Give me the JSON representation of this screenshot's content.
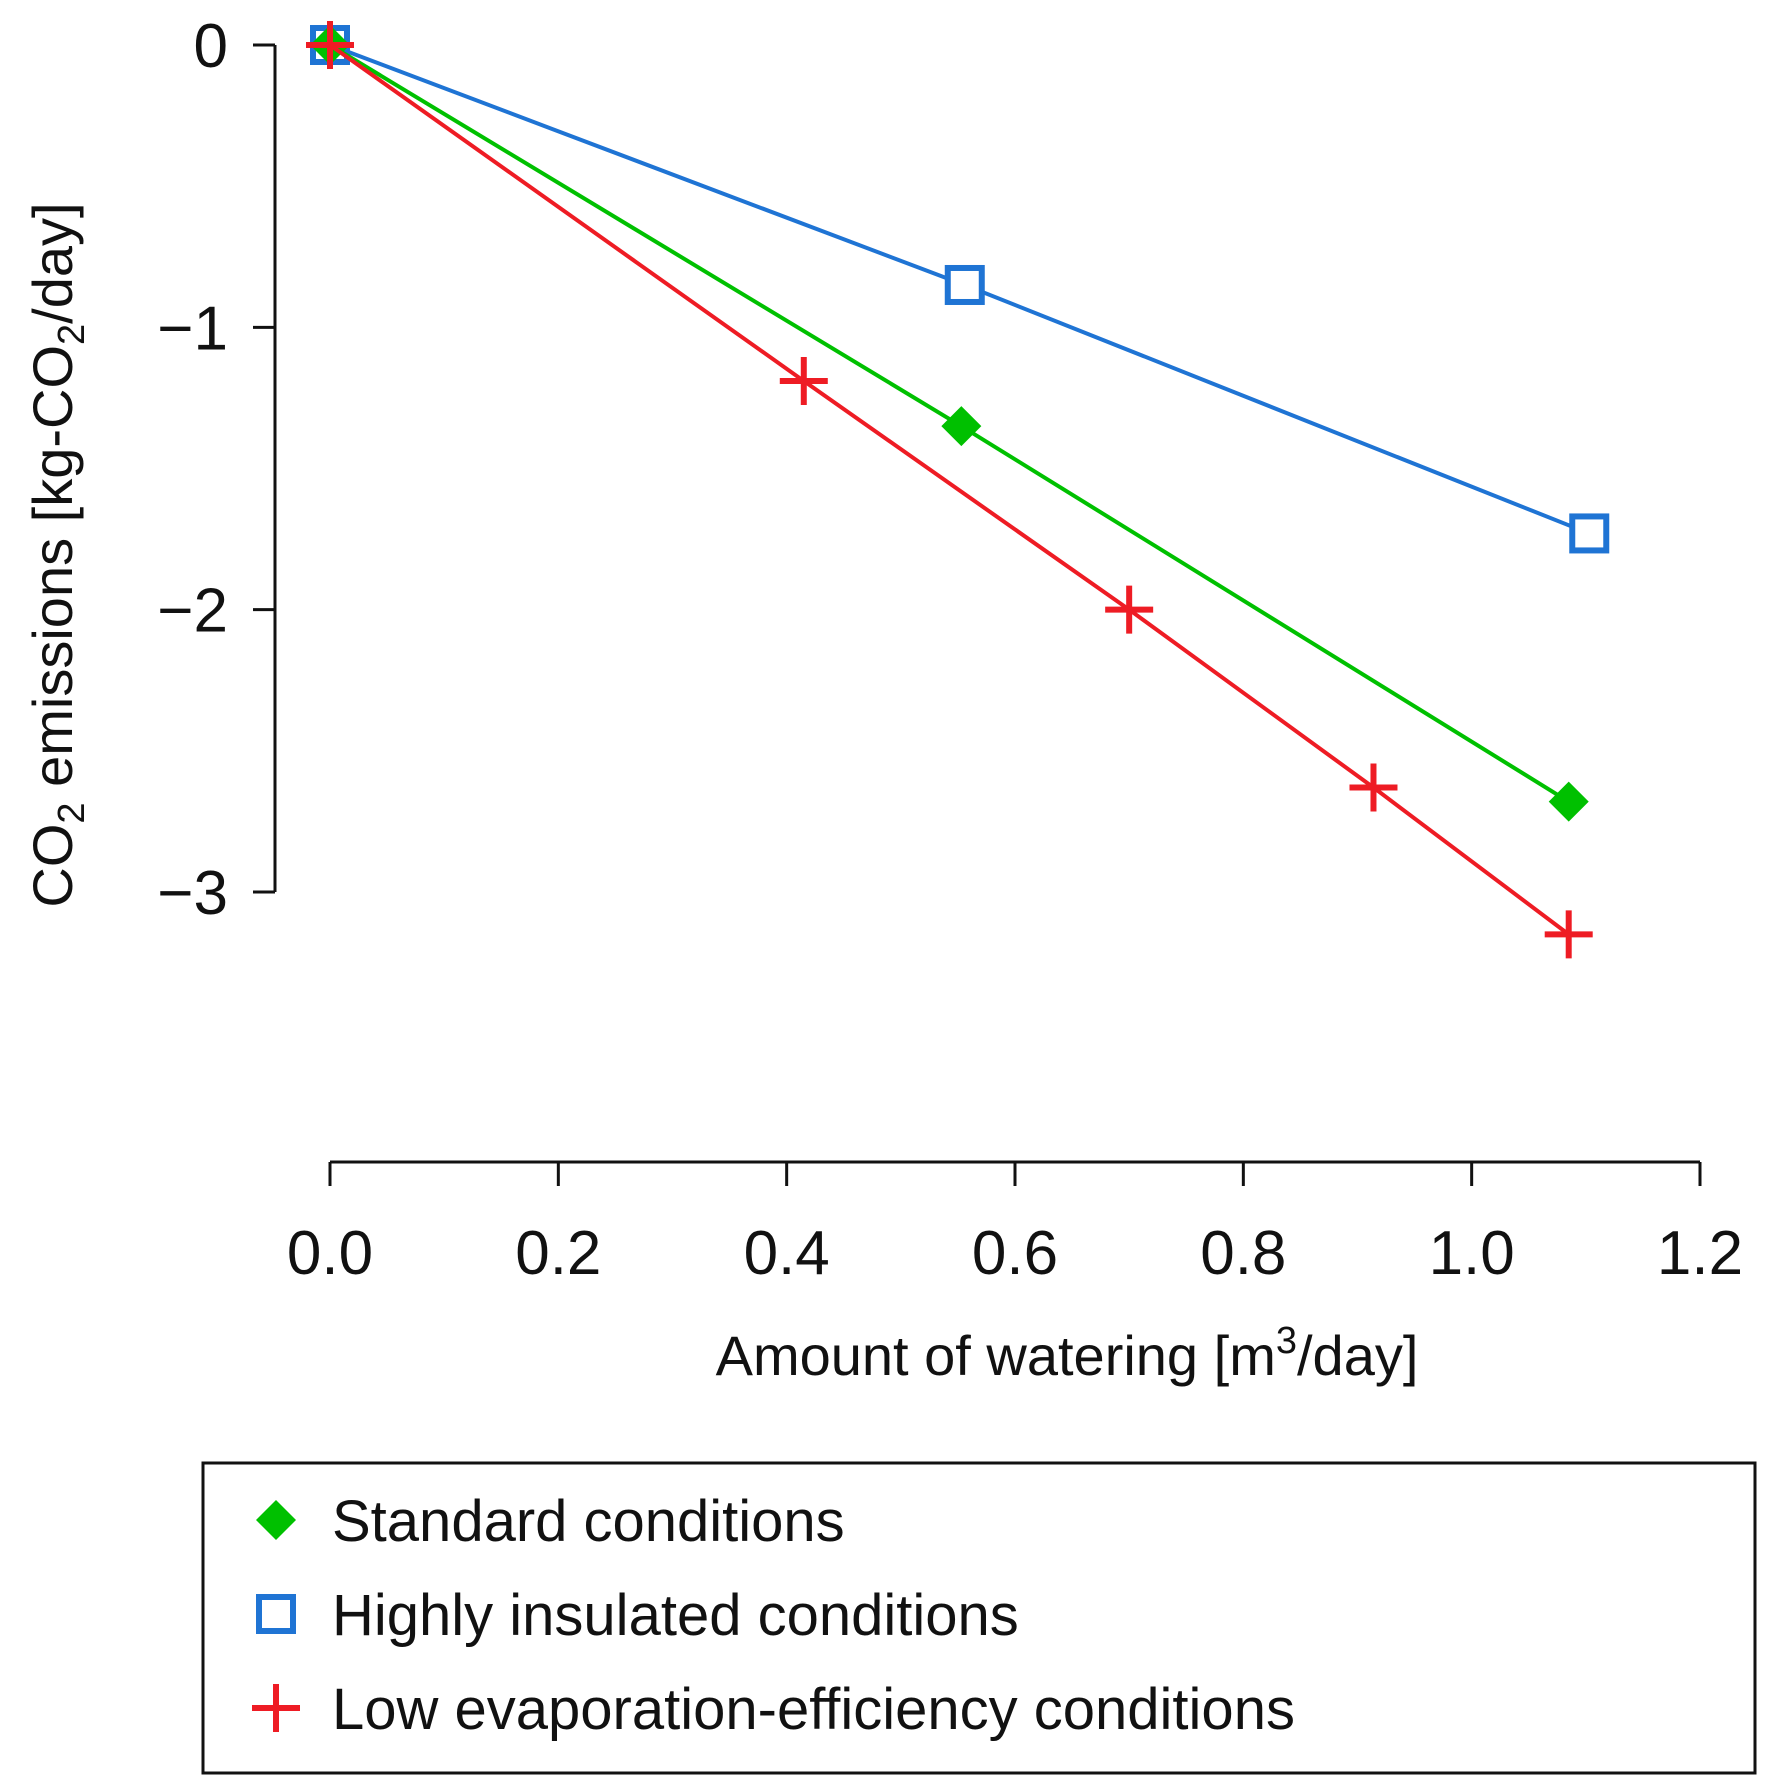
{
  "chart_data": {
    "type": "line",
    "title": "",
    "xlabel": {
      "prefix": "Amount of watering [m",
      "sup": "3",
      "suffix": "/day]"
    },
    "ylabel": {
      "prefix": "CO",
      "sub1": "2",
      "middle": " emissions [kg-CO",
      "sub2": "2",
      "suffix": "/day]"
    },
    "xlim": [
      0,
      1.2
    ],
    "ylim": [
      -3,
      0
    ],
    "x_ticks": [
      0.0,
      0.2,
      0.4,
      0.6,
      0.8,
      1.0,
      1.2
    ],
    "x_tick_labels": [
      "0.0",
      "0.2",
      "0.4",
      "0.6",
      "0.8",
      "1.0",
      "1.2"
    ],
    "y_ticks": [
      0,
      -1,
      -2,
      -3
    ],
    "y_tick_labels": [
      "0",
      "−1",
      "−2",
      "−3"
    ],
    "grid": false,
    "legend_position": "bottom",
    "series": [
      {
        "name": "Standard conditions",
        "color": "#00c000",
        "marker": "diamond",
        "points": [
          [
            0.0,
            0.0
          ],
          [
            0.553,
            -1.35
          ],
          [
            1.085,
            -2.68
          ]
        ]
      },
      {
        "name": "Highly insulated conditions",
        "color": "#1f74d4",
        "marker": "square",
        "points": [
          [
            0.0,
            0.0
          ],
          [
            0.556,
            -0.85
          ],
          [
            1.103,
            -1.73
          ]
        ]
      },
      {
        "name": "Low evaporation-efficiency conditions",
        "color": "#ee1c24",
        "marker": "plus",
        "points": [
          [
            0.0,
            0.0
          ],
          [
            0.415,
            -1.19
          ],
          [
            0.7,
            -2.0
          ],
          [
            0.914,
            -2.63
          ],
          [
            1.085,
            -3.15
          ]
        ]
      }
    ]
  }
}
